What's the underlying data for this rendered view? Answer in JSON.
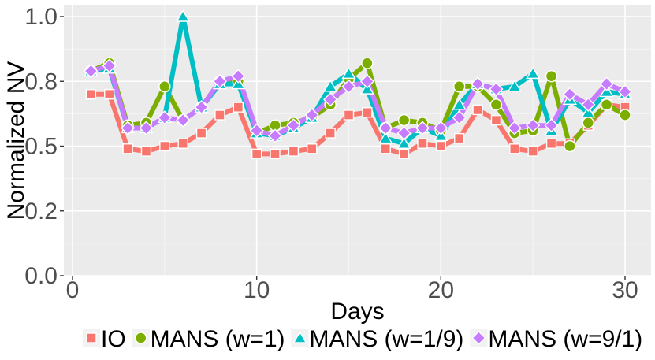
{
  "chart_data": {
    "type": "line",
    "title": "",
    "xlabel": "Days",
    "ylabel": "Normalized NV",
    "xlim": [
      0,
      31
    ],
    "ylim": [
      0,
      1.0
    ],
    "x_ticks": [
      0,
      10,
      20,
      30
    ],
    "x_tick_labels": [
      "0",
      "10",
      "20",
      "30"
    ],
    "y_ticks": [
      0.0,
      0.25,
      0.5,
      0.75,
      1.0
    ],
    "y_tick_labels": [
      "0.0",
      "0.2",
      "0.5",
      "0.8",
      "1.0"
    ],
    "grid": true,
    "legend_position": "bottom",
    "x": [
      1,
      2,
      3,
      4,
      5,
      6,
      7,
      8,
      9,
      10,
      11,
      12,
      13,
      14,
      15,
      16,
      17,
      18,
      19,
      20,
      21,
      22,
      23,
      24,
      25,
      26,
      27,
      28,
      29,
      30
    ],
    "series": [
      {
        "name": "IO",
        "color": "#f8766d",
        "marker": "square",
        "values": [
          0.7,
          0.7,
          0.49,
          0.48,
          0.5,
          0.51,
          0.55,
          0.62,
          0.65,
          0.47,
          0.47,
          0.48,
          0.49,
          0.55,
          0.62,
          0.63,
          0.49,
          0.47,
          0.51,
          0.5,
          0.53,
          0.64,
          0.6,
          0.49,
          0.48,
          0.51,
          0.51,
          0.58,
          0.66,
          0.65
        ]
      },
      {
        "name": "MANS (w=1)",
        "color": "#7cae00",
        "marker": "circle",
        "values": [
          0.79,
          0.82,
          0.58,
          0.59,
          0.73,
          0.6,
          0.65,
          0.75,
          0.75,
          0.55,
          0.58,
          0.59,
          0.61,
          0.66,
          0.76,
          0.82,
          0.57,
          0.6,
          0.59,
          0.56,
          0.73,
          0.73,
          0.66,
          0.55,
          0.56,
          0.77,
          0.5,
          0.59,
          0.66,
          0.62
        ]
      },
      {
        "name": "MANS (w=1/9)",
        "color": "#00bfc4",
        "marker": "triangle",
        "values": [
          0.79,
          0.8,
          0.57,
          0.57,
          0.61,
          1.0,
          0.65,
          0.74,
          0.74,
          0.55,
          0.54,
          0.57,
          0.61,
          0.73,
          0.78,
          0.72,
          0.53,
          0.51,
          0.57,
          0.54,
          0.66,
          0.74,
          0.72,
          0.73,
          0.78,
          0.56,
          0.68,
          0.63,
          0.71,
          0.7
        ]
      },
      {
        "name": "MANS (w=9/1)",
        "color": "#c77cff",
        "marker": "diamond",
        "values": [
          0.79,
          0.81,
          0.57,
          0.57,
          0.61,
          0.6,
          0.65,
          0.75,
          0.77,
          0.56,
          0.54,
          0.58,
          0.62,
          0.68,
          0.73,
          0.75,
          0.57,
          0.55,
          0.57,
          0.57,
          0.61,
          0.74,
          0.72,
          0.57,
          0.58,
          0.58,
          0.7,
          0.66,
          0.74,
          0.71
        ]
      }
    ]
  }
}
